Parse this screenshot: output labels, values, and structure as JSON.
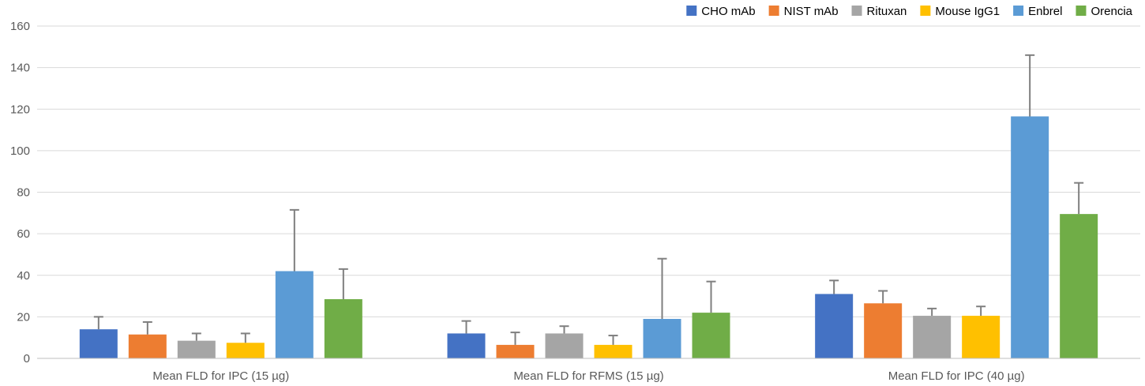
{
  "chart_data": {
    "type": "bar",
    "title": "",
    "xlabel": "",
    "ylabel": "",
    "ylim": [
      0,
      160
    ],
    "yticks": [
      0,
      20,
      40,
      60,
      80,
      100,
      120,
      140,
      160
    ],
    "grid": true,
    "legend_position": "top-right",
    "categories": [
      "Mean FLD for IPC (15 µg)",
      "Mean FLD for RFMS (15 µg)",
      "Mean FLD for IPC (40 µg)"
    ],
    "series": [
      {
        "name": "CHO mAb",
        "color": "#4472C4",
        "values": [
          14,
          12,
          31
        ],
        "errors": [
          6,
          6,
          6.5
        ]
      },
      {
        "name": "NIST mAb",
        "color": "#ED7D31",
        "values": [
          11.5,
          6.5,
          26.5
        ],
        "errors": [
          6,
          6,
          6
        ]
      },
      {
        "name": "Rituxan",
        "color": "#A5A5A5",
        "values": [
          8.5,
          12,
          20.5
        ],
        "errors": [
          3.5,
          3.5,
          3.5
        ]
      },
      {
        "name": "Mouse IgG1",
        "color": "#FFC000",
        "values": [
          7.5,
          6.5,
          20.5
        ],
        "errors": [
          4.5,
          4.5,
          4.5
        ]
      },
      {
        "name": "Enbrel",
        "color": "#5B9BD5",
        "values": [
          42,
          19,
          116.5
        ],
        "errors": [
          29.5,
          29,
          29.5
        ]
      },
      {
        "name": "Orencia",
        "color": "#70AD47",
        "values": [
          28.5,
          22,
          69.5
        ],
        "errors": [
          14.5,
          15,
          15
        ]
      }
    ]
  }
}
